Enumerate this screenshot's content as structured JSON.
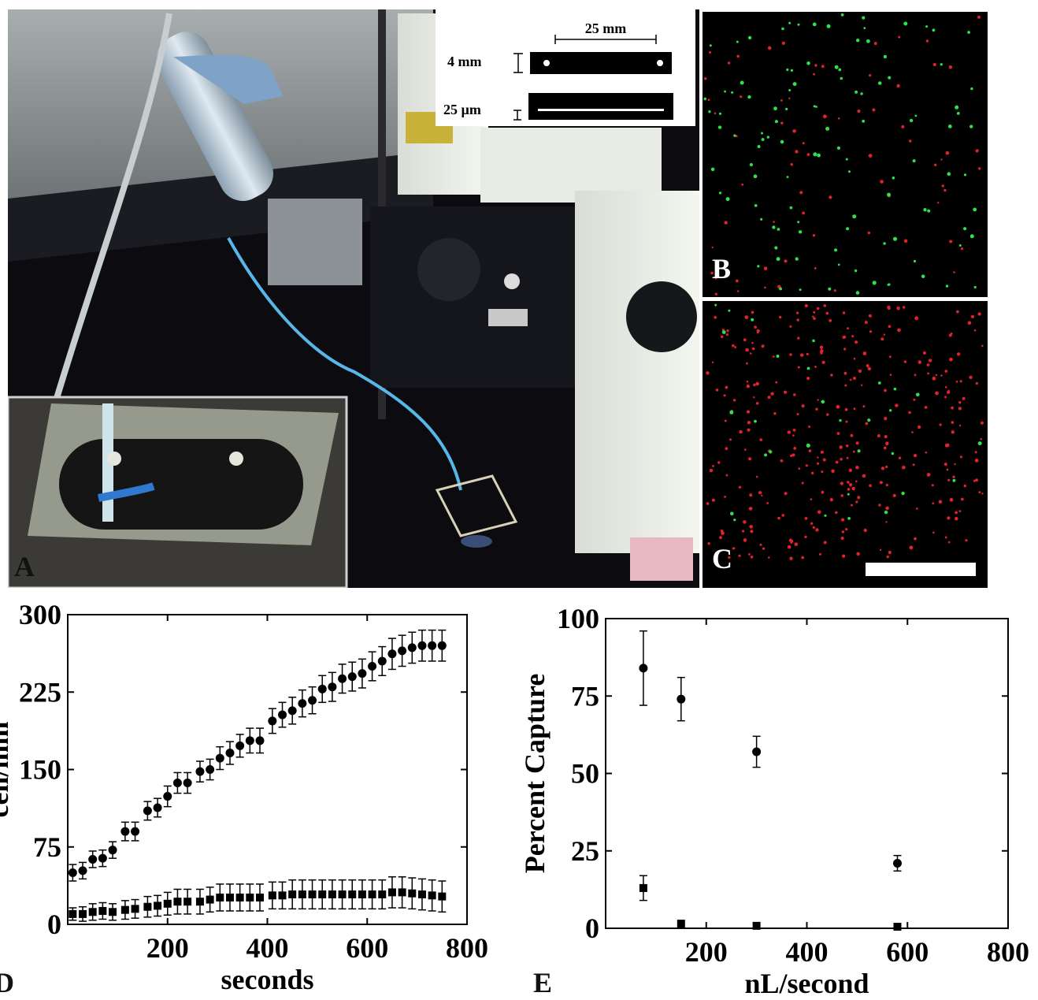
{
  "panels": {
    "a": "A",
    "b": "B",
    "c": "C",
    "d": "D",
    "e": "E"
  },
  "schematic": {
    "width_label": "25 mm",
    "height_label": "4 mm",
    "depth_label": "25 µm"
  },
  "colors": {
    "photo_dark": "#0c0c10",
    "channel_black": "#000000",
    "fluor_red": "#e0222a",
    "fluor_green": "#2ee04a",
    "microscope_white": "#eef0ea",
    "tubing_blue": "#57b7e8"
  },
  "chart_data": [
    {
      "type": "scatter",
      "panel": "D",
      "xlabel": "seconds",
      "ylabel": "cell/mm",
      "xlim": [
        0,
        800
      ],
      "ylim": [
        0,
        300
      ],
      "xticks": [
        "200",
        "400",
        "600",
        "800"
      ],
      "yticks": [
        "0",
        "75",
        "150",
        "225",
        "300"
      ],
      "series": [
        {
          "marker": "circle",
          "x": [
            10,
            30,
            50,
            70,
            90,
            115,
            135,
            160,
            180,
            200,
            220,
            240,
            265,
            285,
            305,
            325,
            345,
            365,
            385,
            410,
            430,
            450,
            470,
            490,
            510,
            530,
            550,
            570,
            590,
            610,
            630,
            650,
            670,
            690,
            710,
            730,
            750
          ],
          "y": [
            50,
            52,
            63,
            64,
            72,
            90,
            90,
            110,
            113,
            124,
            137,
            137,
            148,
            150,
            161,
            166,
            173,
            178,
            178,
            197,
            203,
            207,
            214,
            217,
            228,
            230,
            238,
            240,
            243,
            250,
            255,
            262,
            265,
            268,
            270,
            270,
            270
          ],
          "err": [
            8,
            8,
            8,
            8,
            8,
            9,
            9,
            9,
            9,
            10,
            10,
            10,
            10,
            10,
            11,
            11,
            11,
            12,
            12,
            12,
            12,
            13,
            13,
            13,
            13,
            14,
            14,
            14,
            14,
            14,
            14,
            15,
            15,
            15,
            15,
            15,
            15
          ]
        },
        {
          "marker": "square",
          "x": [
            10,
            30,
            50,
            70,
            90,
            115,
            135,
            160,
            180,
            200,
            220,
            240,
            265,
            285,
            305,
            325,
            345,
            365,
            385,
            410,
            430,
            450,
            470,
            490,
            510,
            530,
            550,
            570,
            590,
            610,
            630,
            650,
            670,
            690,
            710,
            730,
            750
          ],
          "y": [
            10,
            10,
            12,
            13,
            12,
            14,
            15,
            17,
            18,
            20,
            22,
            22,
            22,
            24,
            26,
            26,
            26,
            26,
            26,
            28,
            28,
            29,
            29,
            29,
            29,
            29,
            29,
            29,
            29,
            29,
            29,
            31,
            31,
            30,
            29,
            28,
            27
          ],
          "err": [
            6,
            7,
            8,
            8,
            8,
            9,
            9,
            10,
            10,
            11,
            12,
            12,
            12,
            12,
            13,
            13,
            13,
            13,
            13,
            13,
            13,
            14,
            14,
            14,
            14,
            14,
            14,
            14,
            14,
            14,
            14,
            15,
            15,
            15,
            15,
            15,
            15
          ]
        }
      ]
    },
    {
      "type": "scatter",
      "panel": "E",
      "xlabel": "nL/second",
      "ylabel": "Percent Capture",
      "xlim": [
        0,
        800
      ],
      "ylim": [
        0,
        100
      ],
      "xticks": [
        "200",
        "400",
        "600",
        "800"
      ],
      "yticks": [
        "0",
        "25",
        "50",
        "75",
        "100"
      ],
      "series": [
        {
          "marker": "circle",
          "x": [
            75,
            150,
            300,
            580
          ],
          "y": [
            84,
            74,
            57,
            21
          ],
          "err": [
            12,
            7,
            5,
            2.5
          ]
        },
        {
          "marker": "square",
          "x": [
            75,
            150,
            300,
            580
          ],
          "y": [
            13,
            1.5,
            0.8,
            0.5
          ],
          "err": [
            4,
            0,
            0,
            0
          ]
        }
      ]
    }
  ]
}
